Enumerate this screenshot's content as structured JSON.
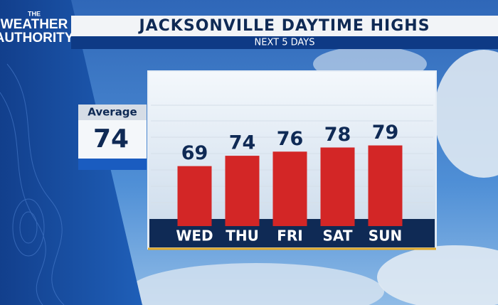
{
  "brand": {
    "lines": [
      "THE",
      "WEATHER",
      "AUTHORITY"
    ]
  },
  "chart_data": {
    "type": "bar",
    "title": "JACKSONVILLE DAYTIME HIGHS",
    "subtitle": "NEXT 5 DAYS",
    "categories": [
      "WED",
      "THU",
      "FRI",
      "SAT",
      "SUN"
    ],
    "values": [
      69,
      74,
      76,
      78,
      79
    ],
    "color": "#d32626",
    "ylim": [
      40,
      84
    ],
    "average": {
      "label": "Average",
      "value": 74
    }
  }
}
